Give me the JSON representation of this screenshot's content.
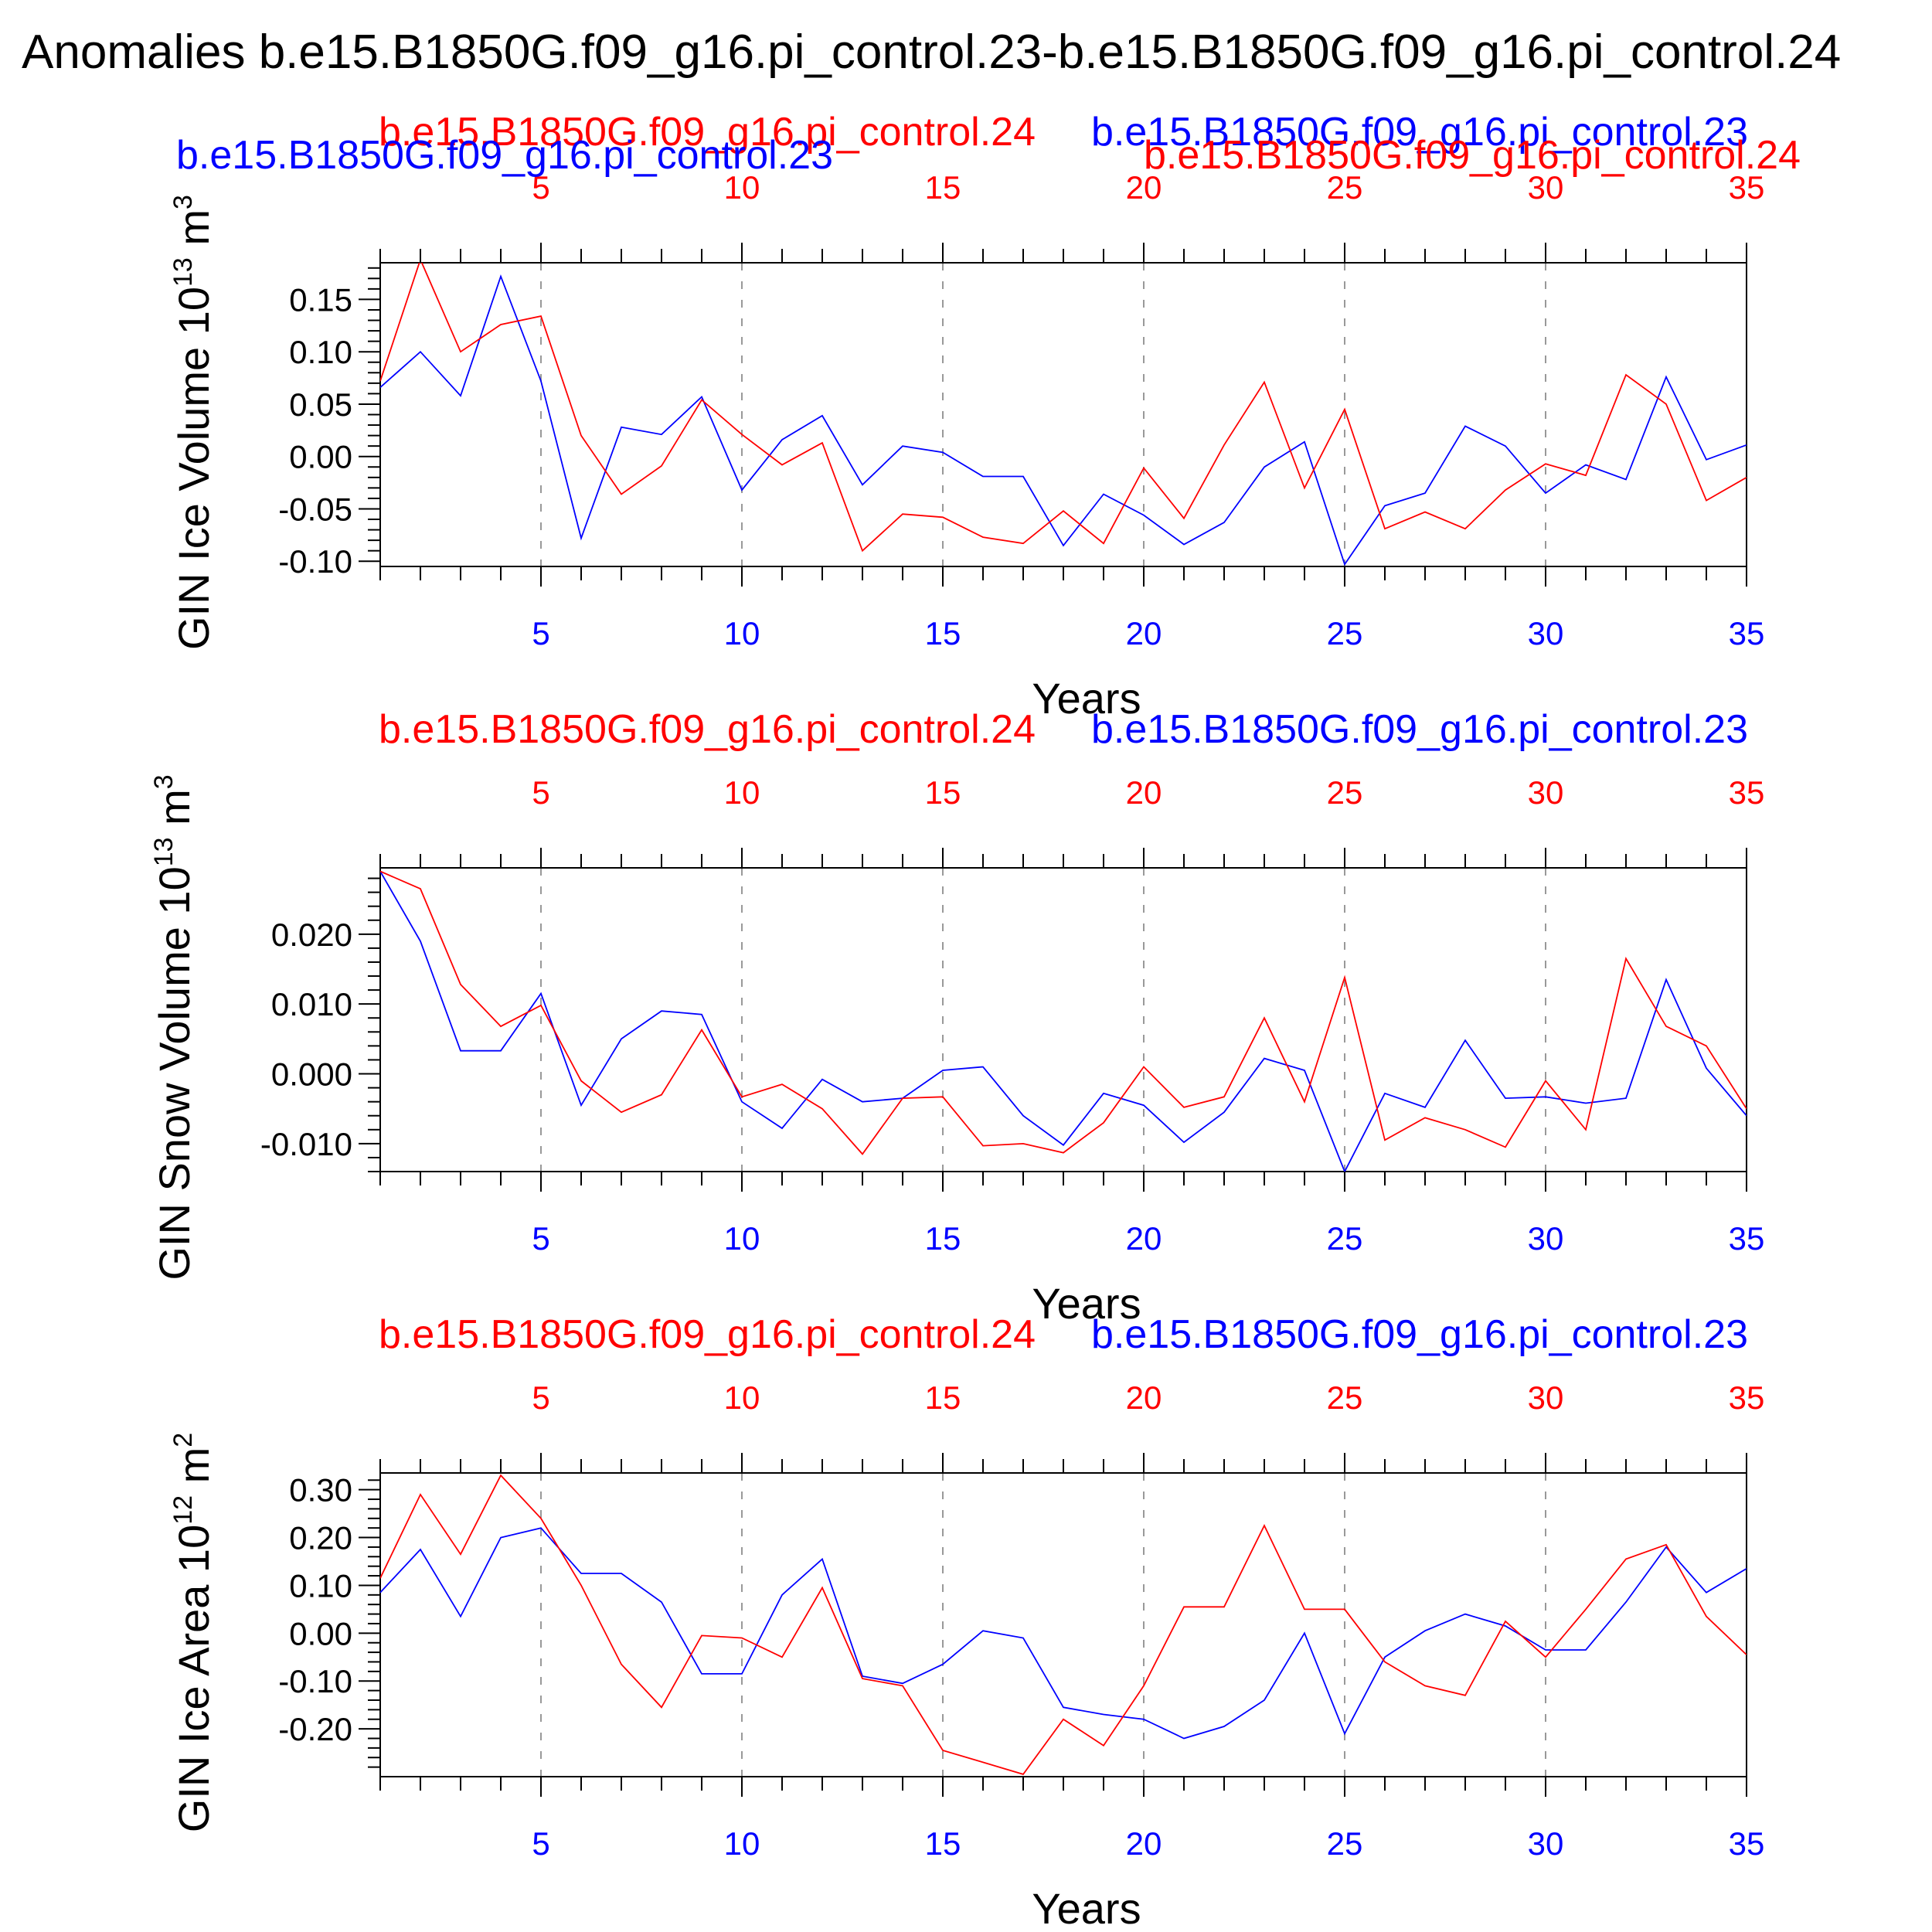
{
  "title": "Anomalies b.e15.B1850G.f09_g16.pi_control.23-b.e15.B1850G.f09_g16.pi_control.24",
  "colors": {
    "blue": "#0000ff",
    "red": "#ff0000",
    "grid": "#999999",
    "axis": "#000000"
  },
  "chart_data": [
    {
      "type": "line",
      "ylabel": "GIN Ice Volume 10",
      "yexp": "13",
      "yunit": "m",
      "yunitexp": "3",
      "xlabel": "Years",
      "xlim": [
        1,
        35
      ],
      "ylim": [
        -0.105,
        0.185
      ],
      "yticks": [
        -0.1,
        -0.05,
        0.0,
        0.05,
        0.1,
        0.15
      ],
      "ytick_labels": [
        "-0.10",
        "-0.05",
        "0.00",
        "0.05",
        "0.10",
        "0.15"
      ],
      "xticks": [
        5,
        10,
        15,
        20,
        25,
        30,
        35
      ],
      "xtick_labels": [
        "5",
        "10",
        "15",
        "20",
        "25",
        "30",
        "35"
      ],
      "series": [
        {
          "name": "b.e15.B1850G.f09_g16.pi_control.23",
          "color": "#0000ff",
          "x": [
            1,
            2,
            3,
            4,
            5,
            6,
            7,
            8,
            9,
            10,
            11,
            12,
            13,
            14,
            15,
            16,
            17,
            18,
            19,
            20,
            21,
            22,
            23,
            24,
            25,
            26,
            27,
            28,
            29,
            30,
            31,
            32,
            33,
            34,
            35
          ],
          "values": [
            0.066,
            0.1,
            0.058,
            0.172,
            0.072,
            -0.078,
            0.028,
            0.021,
            0.057,
            -0.032,
            0.016,
            0.039,
            -0.027,
            0.01,
            0.004,
            -0.019,
            -0.019,
            -0.085,
            -0.036,
            -0.056,
            -0.084,
            -0.063,
            -0.01,
            0.014,
            -0.103,
            -0.047,
            -0.035,
            0.029,
            0.01,
            -0.035,
            -0.008,
            -0.022,
            0.076,
            -0.003,
            0.011
          ]
        },
        {
          "name": "b.e15.B1850G.f09_g16.pi_control.24",
          "color": "#ff0000",
          "x": [
            1,
            2,
            3,
            4,
            5,
            6,
            7,
            8,
            9,
            10,
            11,
            12,
            13,
            14,
            15,
            16,
            17,
            18,
            19,
            20,
            21,
            22,
            23,
            24,
            25,
            26,
            27,
            28,
            29,
            30,
            31,
            32,
            33,
            34,
            35
          ],
          "values": [
            0.072,
            0.188,
            0.1,
            0.126,
            0.134,
            0.02,
            -0.036,
            -0.009,
            0.054,
            0.021,
            -0.008,
            0.013,
            -0.09,
            -0.055,
            -0.058,
            -0.077,
            -0.083,
            -0.052,
            -0.083,
            -0.011,
            -0.059,
            0.011,
            0.071,
            -0.03,
            0.045,
            -0.069,
            -0.053,
            -0.069,
            -0.032,
            -0.007,
            -0.018,
            0.078,
            0.05,
            -0.042,
            -0.02
          ]
        }
      ]
    },
    {
      "type": "line",
      "ylabel": "GIN Snow Volume 10",
      "yexp": "13",
      "yunit": "m",
      "yunitexp": "3",
      "xlabel": "Years",
      "xlim": [
        1,
        35
      ],
      "ylim": [
        -0.014,
        0.0295
      ],
      "yticks": [
        -0.01,
        0.0,
        0.01,
        0.02
      ],
      "ytick_labels": [
        "-0.010",
        "0.000",
        "0.010",
        "0.020"
      ],
      "xticks": [
        5,
        10,
        15,
        20,
        25,
        30,
        35
      ],
      "xtick_labels": [
        "5",
        "10",
        "15",
        "20",
        "25",
        "30",
        "35"
      ],
      "series": [
        {
          "name": "b.e15.B1850G.f09_g16.pi_control.23",
          "color": "#0000ff",
          "x": [
            1,
            2,
            3,
            4,
            5,
            6,
            7,
            8,
            9,
            10,
            11,
            12,
            13,
            14,
            15,
            16,
            17,
            18,
            19,
            20,
            21,
            22,
            23,
            24,
            25,
            26,
            27,
            28,
            29,
            30,
            31,
            32,
            33,
            34,
            35
          ],
          "values": [
            0.029,
            0.019,
            0.0033,
            0.0033,
            0.0115,
            -0.0045,
            0.005,
            0.009,
            0.0085,
            -0.004,
            -0.0078,
            -0.0008,
            -0.004,
            -0.0035,
            0.0005,
            0.001,
            -0.006,
            -0.0102,
            -0.0028,
            -0.0045,
            -0.0098,
            -0.0055,
            0.0022,
            0.0005,
            -0.014,
            -0.0028,
            -0.0048,
            0.0048,
            -0.0035,
            -0.0033,
            -0.0042,
            -0.0035,
            0.0135,
            0.0008,
            -0.006
          ]
        },
        {
          "name": "b.e15.B1850G.f09_g16.pi_control.24",
          "color": "#ff0000",
          "x": [
            1,
            2,
            3,
            4,
            5,
            6,
            7,
            8,
            9,
            10,
            11,
            12,
            13,
            14,
            15,
            16,
            17,
            18,
            19,
            20,
            21,
            22,
            23,
            24,
            25,
            26,
            27,
            28,
            29,
            30,
            31,
            32,
            33,
            34,
            35
          ],
          "values": [
            0.029,
            0.0265,
            0.0128,
            0.0068,
            0.0098,
            -0.001,
            -0.0055,
            -0.003,
            0.0063,
            -0.0033,
            -0.0015,
            -0.005,
            -0.0115,
            -0.0035,
            -0.0033,
            -0.0103,
            -0.01,
            -0.0113,
            -0.007,
            0.001,
            -0.0048,
            -0.0033,
            0.008,
            -0.004,
            0.0138,
            -0.0095,
            -0.0063,
            -0.008,
            -0.0105,
            -0.001,
            -0.008,
            0.0165,
            0.0068,
            0.004,
            -0.005
          ]
        }
      ]
    },
    {
      "type": "line",
      "ylabel": "GIN Ice Area 10",
      "yexp": "12",
      "yunit": "m",
      "yunitexp": "2",
      "xlabel": "Years",
      "xlim": [
        1,
        35
      ],
      "ylim": [
        -0.3,
        0.335
      ],
      "yticks": [
        -0.2,
        -0.1,
        0.0,
        0.1,
        0.2,
        0.3
      ],
      "ytick_labels": [
        "-0.20",
        "-0.10",
        "0.00",
        "0.10",
        "0.20",
        "0.30"
      ],
      "xticks": [
        5,
        10,
        15,
        20,
        25,
        30,
        35
      ],
      "xtick_labels": [
        "5",
        "10",
        "15",
        "20",
        "25",
        "30",
        "35"
      ],
      "series": [
        {
          "name": "b.e15.B1850G.f09_g16.pi_control.23",
          "color": "#0000ff",
          "x": [
            1,
            2,
            3,
            4,
            5,
            6,
            7,
            8,
            9,
            10,
            11,
            12,
            13,
            14,
            15,
            16,
            17,
            18,
            19,
            20,
            21,
            22,
            23,
            24,
            25,
            26,
            27,
            28,
            29,
            30,
            31,
            32,
            33,
            34,
            35
          ],
          "values": [
            0.085,
            0.175,
            0.035,
            0.2,
            0.22,
            0.125,
            0.125,
            0.065,
            -0.085,
            -0.085,
            0.08,
            0.155,
            -0.09,
            -0.105,
            -0.065,
            0.005,
            -0.01,
            -0.155,
            -0.17,
            -0.18,
            -0.22,
            -0.195,
            -0.14,
            0.0,
            -0.21,
            -0.05,
            0.005,
            0.04,
            0.015,
            -0.035,
            -0.035,
            0.065,
            0.18,
            0.085,
            0.135
          ]
        },
        {
          "name": "b.e15.B1850G.f09_g16.pi_control.24",
          "color": "#ff0000",
          "x": [
            1,
            2,
            3,
            4,
            5,
            6,
            7,
            8,
            9,
            10,
            11,
            12,
            13,
            14,
            15,
            16,
            17,
            18,
            19,
            20,
            21,
            22,
            23,
            24,
            25,
            26,
            27,
            28,
            29,
            30,
            31,
            32,
            33,
            34,
            35
          ],
          "values": [
            0.115,
            0.29,
            0.165,
            0.33,
            0.24,
            0.1,
            -0.065,
            -0.155,
            -0.005,
            -0.01,
            -0.05,
            0.095,
            -0.095,
            -0.11,
            -0.245,
            -0.27,
            -0.295,
            -0.18,
            -0.235,
            -0.11,
            0.055,
            0.055,
            0.225,
            0.05,
            0.05,
            -0.06,
            -0.11,
            -0.13,
            0.025,
            -0.05,
            0.05,
            0.155,
            0.185,
            0.035,
            -0.045
          ]
        }
      ]
    }
  ]
}
